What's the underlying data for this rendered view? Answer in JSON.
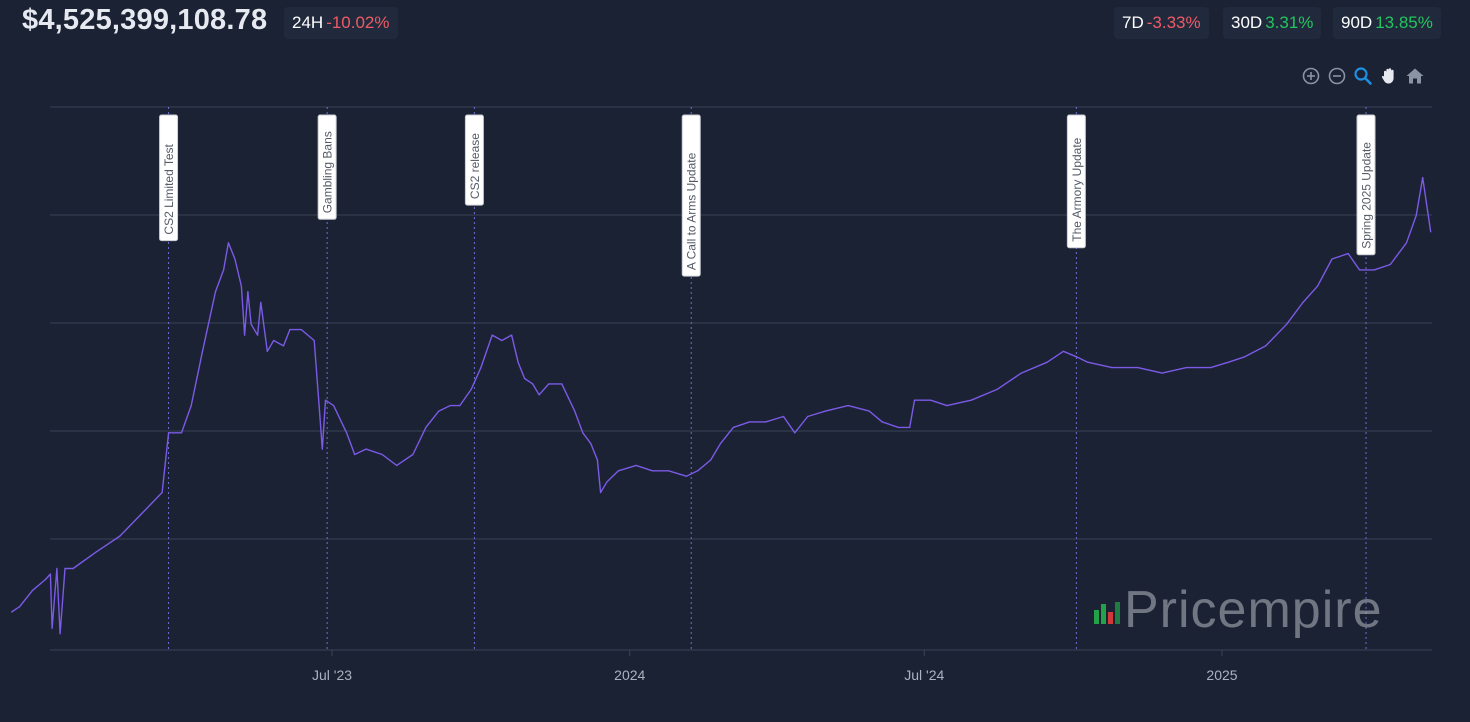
{
  "header": {
    "price": "$4,525,399,108.78",
    "periods": [
      {
        "label": "24H",
        "value": "-10.02%",
        "trend": "negative"
      },
      {
        "label": "7D",
        "value": "-3.33%",
        "trend": "negative"
      },
      {
        "label": "30D",
        "value": "3.31%",
        "trend": "positive"
      },
      {
        "label": "90D",
        "value": "13.85%",
        "trend": "positive"
      }
    ]
  },
  "toolbar": {
    "tools": [
      "zoom-in-icon",
      "zoom-out-icon",
      "zoom-select-icon",
      "pan-hand-icon",
      "home-reset-icon"
    ]
  },
  "brand": {
    "name": "Pricempire"
  },
  "colors": {
    "background": "#1b2234",
    "line": "#7b5ae6",
    "grid": "#3a4456",
    "negative": "#ef5a66",
    "positive": "#22c55e",
    "annotation": "#6b6fd8"
  },
  "chart_data": {
    "type": "line",
    "title": "",
    "xlabel": "",
    "ylabel": "",
    "y_tick_labels_shown": false,
    "grid": "horizontal",
    "x_ticks": [
      {
        "date": "2023-07-01",
        "label": "Jul '23"
      },
      {
        "date": "2024-01-01",
        "label": "2024"
      },
      {
        "date": "2024-07-01",
        "label": "Jul '24"
      },
      {
        "date": "2025-01-01",
        "label": "2025"
      }
    ],
    "annotations": [
      {
        "date": "2023-03-22",
        "label": "CS2 Limited Test"
      },
      {
        "date": "2023-06-28",
        "label": "Gambling Bans"
      },
      {
        "date": "2023-09-27",
        "label": "CS2 release"
      },
      {
        "date": "2024-02-08",
        "label": "A Call to Arms Update"
      },
      {
        "date": "2024-10-03",
        "label": "The Armory Update"
      },
      {
        "date": "2025-03-31",
        "label": "Spring 2025 Update"
      }
    ],
    "series": [
      {
        "relative_values_note": "",
        "points": [
          [
            "2022-12-15",
            0.07
          ],
          [
            "2022-12-20",
            0.08
          ],
          [
            "2022-12-28",
            0.11
          ],
          [
            "2023-01-05",
            0.13
          ],
          [
            "2023-01-08",
            0.14
          ],
          [
            "2023-01-09",
            0.04
          ],
          [
            "2023-01-12",
            0.15
          ],
          [
            "2023-01-14",
            0.03
          ],
          [
            "2023-01-17",
            0.15
          ],
          [
            "2023-01-22",
            0.15
          ],
          [
            "2023-02-05",
            0.18
          ],
          [
            "2023-02-20",
            0.21
          ],
          [
            "2023-03-05",
            0.25
          ],
          [
            "2023-03-18",
            0.29
          ],
          [
            "2023-03-22",
            0.4
          ],
          [
            "2023-03-30",
            0.4
          ],
          [
            "2023-04-05",
            0.45
          ],
          [
            "2023-04-12",
            0.55
          ],
          [
            "2023-04-20",
            0.66
          ],
          [
            "2023-04-25",
            0.7
          ],
          [
            "2023-04-28",
            0.75
          ],
          [
            "2023-05-02",
            0.72
          ],
          [
            "2023-05-06",
            0.67
          ],
          [
            "2023-05-08",
            0.58
          ],
          [
            "2023-05-10",
            0.66
          ],
          [
            "2023-05-12",
            0.6
          ],
          [
            "2023-05-16",
            0.58
          ],
          [
            "2023-05-18",
            0.64
          ],
          [
            "2023-05-22",
            0.55
          ],
          [
            "2023-05-26",
            0.57
          ],
          [
            "2023-06-01",
            0.56
          ],
          [
            "2023-06-05",
            0.59
          ],
          [
            "2023-06-12",
            0.59
          ],
          [
            "2023-06-20",
            0.57
          ],
          [
            "2023-06-23",
            0.45
          ],
          [
            "2023-06-25",
            0.37
          ],
          [
            "2023-06-27",
            0.46
          ],
          [
            "2023-07-02",
            0.45
          ],
          [
            "2023-07-10",
            0.4
          ],
          [
            "2023-07-15",
            0.36
          ],
          [
            "2023-07-22",
            0.37
          ],
          [
            "2023-08-01",
            0.36
          ],
          [
            "2023-08-10",
            0.34
          ],
          [
            "2023-08-20",
            0.36
          ],
          [
            "2023-08-28",
            0.41
          ],
          [
            "2023-09-05",
            0.44
          ],
          [
            "2023-09-12",
            0.45
          ],
          [
            "2023-09-18",
            0.45
          ],
          [
            "2023-09-25",
            0.48
          ],
          [
            "2023-10-01",
            0.52
          ],
          [
            "2023-10-08",
            0.58
          ],
          [
            "2023-10-14",
            0.57
          ],
          [
            "2023-10-20",
            0.58
          ],
          [
            "2023-10-24",
            0.53
          ],
          [
            "2023-10-28",
            0.5
          ],
          [
            "2023-11-02",
            0.49
          ],
          [
            "2023-11-06",
            0.47
          ],
          [
            "2023-11-12",
            0.49
          ],
          [
            "2023-11-20",
            0.49
          ],
          [
            "2023-11-28",
            0.44
          ],
          [
            "2023-12-03",
            0.4
          ],
          [
            "2023-12-08",
            0.38
          ],
          [
            "2023-12-12",
            0.35
          ],
          [
            "2023-12-14",
            0.29
          ],
          [
            "2023-12-18",
            0.31
          ],
          [
            "2023-12-25",
            0.33
          ],
          [
            "2024-01-05",
            0.34
          ],
          [
            "2024-01-15",
            0.33
          ],
          [
            "2024-01-25",
            0.33
          ],
          [
            "2024-02-05",
            0.32
          ],
          [
            "2024-02-12",
            0.33
          ],
          [
            "2024-02-20",
            0.35
          ],
          [
            "2024-02-26",
            0.38
          ],
          [
            "2024-03-05",
            0.41
          ],
          [
            "2024-03-15",
            0.42
          ],
          [
            "2024-03-25",
            0.42
          ],
          [
            "2024-04-05",
            0.43
          ],
          [
            "2024-04-12",
            0.4
          ],
          [
            "2024-04-20",
            0.43
          ],
          [
            "2024-05-01",
            0.44
          ],
          [
            "2024-05-15",
            0.45
          ],
          [
            "2024-05-28",
            0.44
          ],
          [
            "2024-06-05",
            0.42
          ],
          [
            "2024-06-15",
            0.41
          ],
          [
            "2024-06-22",
            0.41
          ],
          [
            "2024-06-25",
            0.46
          ],
          [
            "2024-07-05",
            0.46
          ],
          [
            "2024-07-15",
            0.45
          ],
          [
            "2024-07-30",
            0.46
          ],
          [
            "2024-08-15",
            0.48
          ],
          [
            "2024-08-30",
            0.51
          ],
          [
            "2024-09-15",
            0.53
          ],
          [
            "2024-09-25",
            0.55
          ],
          [
            "2024-10-03",
            0.54
          ],
          [
            "2024-10-10",
            0.53
          ],
          [
            "2024-10-25",
            0.52
          ],
          [
            "2024-11-10",
            0.52
          ],
          [
            "2024-11-25",
            0.51
          ],
          [
            "2024-12-10",
            0.52
          ],
          [
            "2024-12-25",
            0.52
          ],
          [
            "2025-01-05",
            0.53
          ],
          [
            "2025-01-15",
            0.54
          ],
          [
            "2025-01-28",
            0.56
          ],
          [
            "2025-02-10",
            0.6
          ],
          [
            "2025-02-20",
            0.64
          ],
          [
            "2025-03-01",
            0.67
          ],
          [
            "2025-03-10",
            0.72
          ],
          [
            "2025-03-20",
            0.73
          ],
          [
            "2025-03-27",
            0.7
          ],
          [
            "2025-04-05",
            0.7
          ],
          [
            "2025-04-15",
            0.71
          ],
          [
            "2025-04-25",
            0.75
          ],
          [
            "2025-05-01",
            0.8
          ],
          [
            "2025-05-05",
            0.87
          ],
          [
            "2025-05-08",
            0.81
          ],
          [
            "2025-05-10",
            0.77
          ]
        ]
      }
    ]
  }
}
